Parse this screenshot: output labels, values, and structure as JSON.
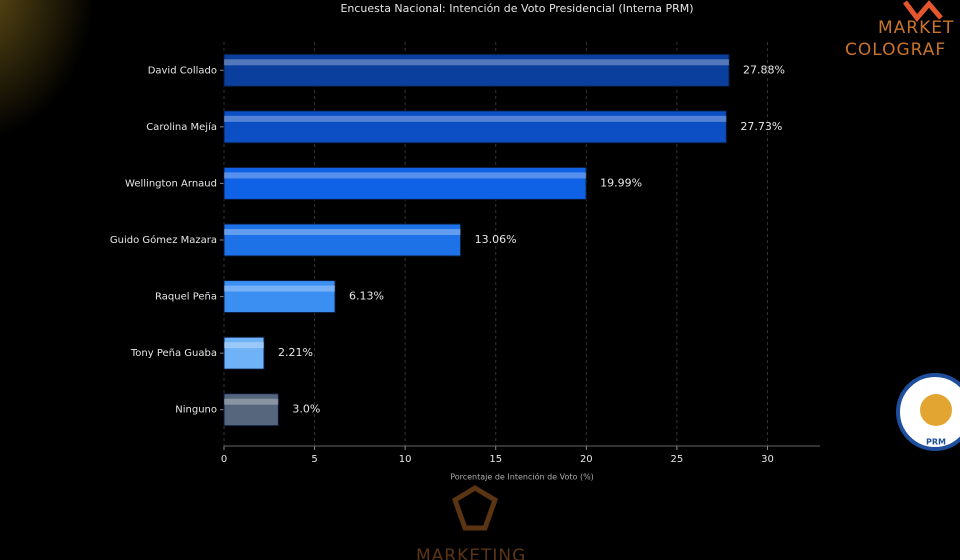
{
  "chart_data": {
    "type": "barh",
    "title": "Encuesta Nacional: Intención de Voto Presidencial (Interna PRM)",
    "xlabel": "Porcentaje de Intención de Voto (%)",
    "categories": [
      "David Collado",
      "Carolina Mejía",
      "Wellington Arnaud",
      "Guido Gómez Mazara",
      "Raquel Peña",
      "Tony Peña Guaba",
      "Ninguno"
    ],
    "values": [
      27.88,
      27.73,
      19.99,
      13.06,
      6.13,
      2.21,
      3.0
    ],
    "value_labels": [
      "27.88%",
      "27.73%",
      "19.99%",
      "13.06%",
      "6.13%",
      "2.21%",
      "3.0%"
    ],
    "colors": [
      "#0b3f9e",
      "#0c4fc4",
      "#0f62e6",
      "#1d72e8",
      "#3b8ef2",
      "#6fb2f7",
      "#56667c"
    ],
    "xlim": [
      0,
      32.9
    ],
    "xticks": [
      0,
      5,
      10,
      15,
      20,
      25,
      30
    ],
    "grid": true
  },
  "watermarks": [
    "MARKET",
    "COLOGRAF",
    "MARKETING",
    "PRM"
  ]
}
